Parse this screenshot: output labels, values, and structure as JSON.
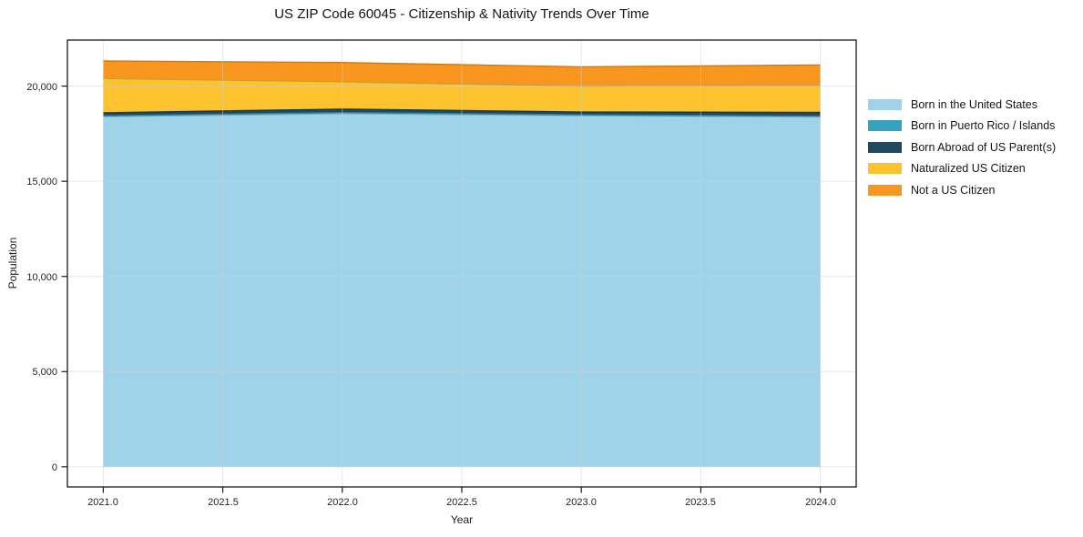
{
  "chart_data": {
    "type": "area",
    "stacked": true,
    "title": "US ZIP Code 60045 - Citizenship & Nativity Trends Over Time",
    "xlabel": "Year",
    "ylabel": "Population",
    "x": [
      2021,
      2022,
      2023,
      2024
    ],
    "series": [
      {
        "name": "Born in the United States",
        "color": "#9fd3ea",
        "values": [
          18400,
          18550,
          18450,
          18380
        ]
      },
      {
        "name": "Born in Puerto Rico / Islands",
        "color": "#37a1c0",
        "values": [
          40,
          60,
          40,
          40
        ]
      },
      {
        "name": "Born Abroad of US Parent(s)",
        "color": "#21495d",
        "values": [
          160,
          180,
          150,
          200
        ]
      },
      {
        "name": "Naturalized US Citizen",
        "color": "#fcc32e",
        "values": [
          1800,
          1440,
          1360,
          1410
        ]
      },
      {
        "name": "Not a US Citizen",
        "color": "#f8961f",
        "values": [
          920,
          1010,
          1010,
          1080
        ]
      }
    ],
    "totals": [
      21320,
      21240,
      21010,
      21110
    ],
    "xlim": [
      2020.85,
      2024.15
    ],
    "ylim": [
      -1060,
      22420
    ],
    "xticks": [
      2021.0,
      2021.5,
      2022.0,
      2022.5,
      2023.0,
      2023.5,
      2024.0
    ],
    "xtick_labels": [
      "2021.0",
      "2021.5",
      "2022.0",
      "2022.5",
      "2023.0",
      "2023.5",
      "2024.0"
    ],
    "yticks": [
      0,
      5000,
      10000,
      15000,
      20000
    ],
    "ytick_labels": [
      "0",
      "5,000",
      "10,000",
      "15,000",
      "20,000"
    ],
    "grid": true,
    "grid_color": "#d0d0d0",
    "spine_color": "#1a1a1a",
    "legend_position": "right",
    "legend_frame": false
  }
}
